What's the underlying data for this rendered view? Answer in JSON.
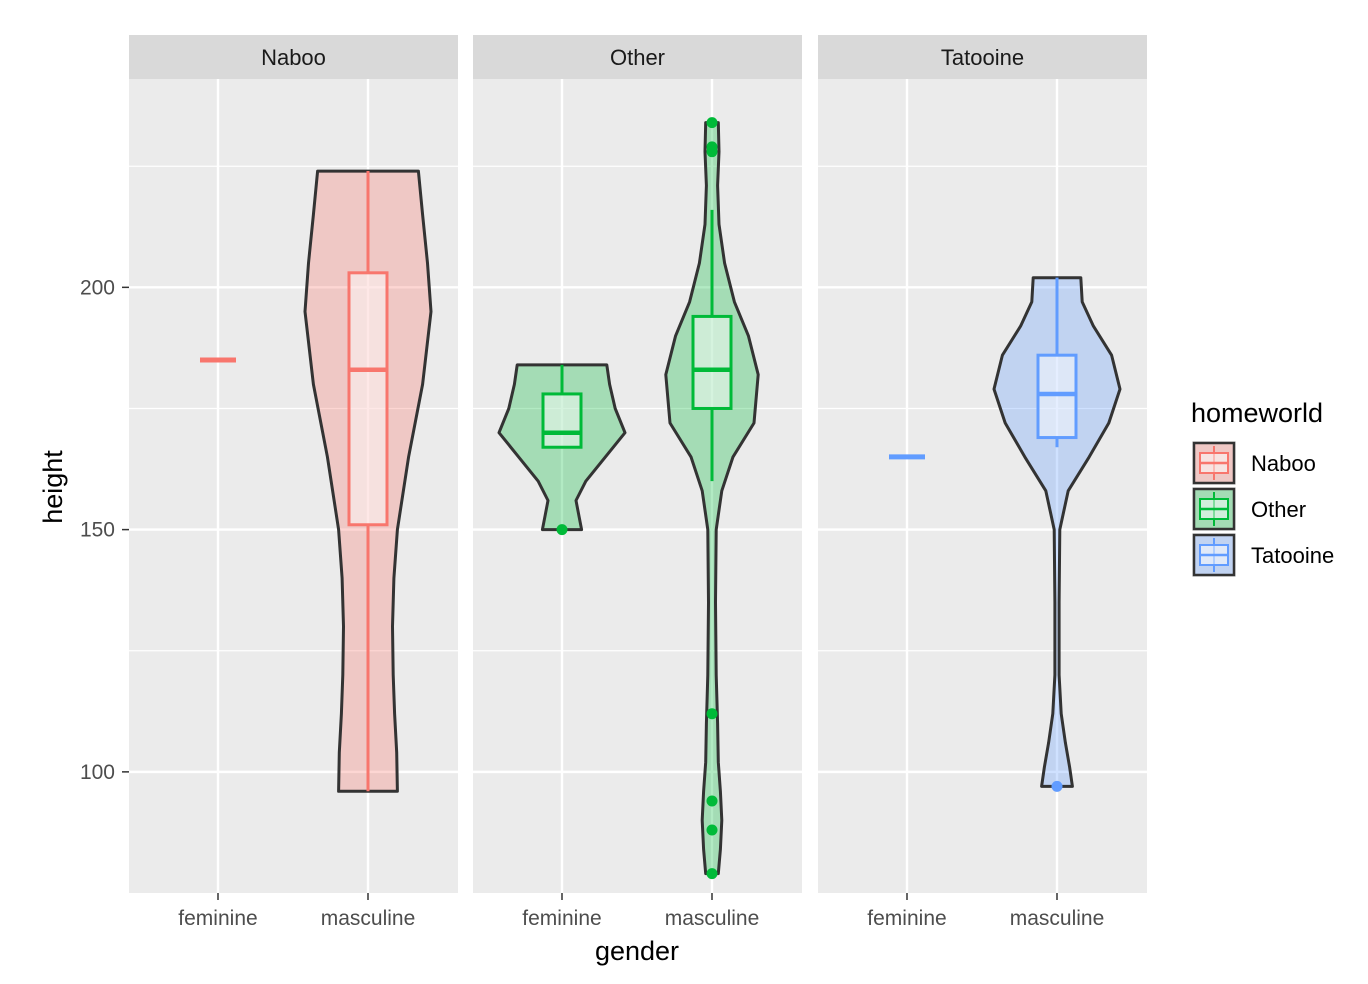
{
  "chart_data": {
    "type": "violin",
    "facet_by": "homeworld",
    "facets": [
      "Naboo",
      "Other",
      "Tatooine"
    ],
    "categories": [
      "feminine",
      "masculine"
    ],
    "xlabel": "gender",
    "ylabel": "height",
    "ylim": [
      75,
      243
    ],
    "yticks": [
      100,
      150,
      200
    ],
    "grid": true,
    "legend": {
      "title": "homeworld",
      "position": "right",
      "entries": [
        "Naboo",
        "Other",
        "Tatooine"
      ]
    },
    "colors": {
      "Naboo": "#F8766D",
      "Other": "#00BA38",
      "Tatooine": "#619CFF",
      "panel_bg": "#EBEBEB",
      "strip_bg": "#D9D9D9",
      "violin_outline": "#333333"
    },
    "groups": [
      {
        "facet": "Naboo",
        "gender": "feminine",
        "single_value": 185
      },
      {
        "facet": "Naboo",
        "gender": "masculine",
        "box": {
          "min": 96,
          "q1": 151,
          "median": 183,
          "q3": 203,
          "max": 224
        },
        "outliers": [],
        "violin": {
          "ymin": 96,
          "ymax": 224,
          "profile": [
            [
              96,
              0.42
            ],
            [
              104,
              0.41
            ],
            [
              112,
              0.38
            ],
            [
              120,
              0.36
            ],
            [
              130,
              0.35
            ],
            [
              140,
              0.37
            ],
            [
              150,
              0.42
            ],
            [
              165,
              0.58
            ],
            [
              180,
              0.78
            ],
            [
              195,
              0.9
            ],
            [
              205,
              0.85
            ],
            [
              215,
              0.78
            ],
            [
              224,
              0.72
            ]
          ]
        }
      },
      {
        "facet": "Other",
        "gender": "feminine",
        "box": {
          "min": 167,
          "q1": 167,
          "median": 170,
          "q3": 178,
          "max": 184
        },
        "outliers": [
          150
        ],
        "violin": {
          "ymin": 150,
          "ymax": 184,
          "profile": [
            [
              150,
              0.28
            ],
            [
              153,
              0.24
            ],
            [
              156,
              0.2
            ],
            [
              160,
              0.34
            ],
            [
              165,
              0.62
            ],
            [
              170,
              0.9
            ],
            [
              175,
              0.76
            ],
            [
              180,
              0.68
            ],
            [
              184,
              0.64
            ]
          ]
        }
      },
      {
        "facet": "Other",
        "gender": "masculine",
        "box": {
          "min": 160,
          "q1": 175,
          "median": 183,
          "q3": 194,
          "max": 216
        },
        "outliers": [
          79,
          88,
          94,
          112,
          228,
          229,
          234
        ],
        "violin": {
          "ymin": 79,
          "ymax": 234,
          "profile": [
            [
              79,
              0.09
            ],
            [
              84,
              0.12
            ],
            [
              90,
              0.14
            ],
            [
              96,
              0.12
            ],
            [
              102,
              0.09
            ],
            [
              110,
              0.08
            ],
            [
              120,
              0.06
            ],
            [
              135,
              0.05
            ],
            [
              150,
              0.06
            ],
            [
              158,
              0.14
            ],
            [
              165,
              0.3
            ],
            [
              172,
              0.6
            ],
            [
              182,
              0.66
            ],
            [
              190,
              0.52
            ],
            [
              197,
              0.32
            ],
            [
              205,
              0.18
            ],
            [
              213,
              0.1
            ],
            [
              221,
              0.08
            ],
            [
              228,
              0.1
            ],
            [
              234,
              0.09
            ]
          ]
        }
      },
      {
        "facet": "Tatooine",
        "gender": "feminine",
        "single_value": 165
      },
      {
        "facet": "Tatooine",
        "gender": "masculine",
        "box": {
          "min": 167,
          "q1": 169,
          "median": 178,
          "q3": 186,
          "max": 202
        },
        "outliers": [
          97
        ],
        "violin": {
          "ymin": 97,
          "ymax": 202,
          "profile": [
            [
              97,
              0.22
            ],
            [
              101,
              0.18
            ],
            [
              106,
              0.12
            ],
            [
              112,
              0.06
            ],
            [
              120,
              0.03
            ],
            [
              135,
              0.03
            ],
            [
              150,
              0.04
            ],
            [
              158,
              0.16
            ],
            [
              165,
              0.46
            ],
            [
              172,
              0.74
            ],
            [
              179,
              0.9
            ],
            [
              186,
              0.78
            ],
            [
              192,
              0.52
            ],
            [
              197,
              0.36
            ],
            [
              202,
              0.34
            ]
          ]
        }
      }
    ]
  }
}
